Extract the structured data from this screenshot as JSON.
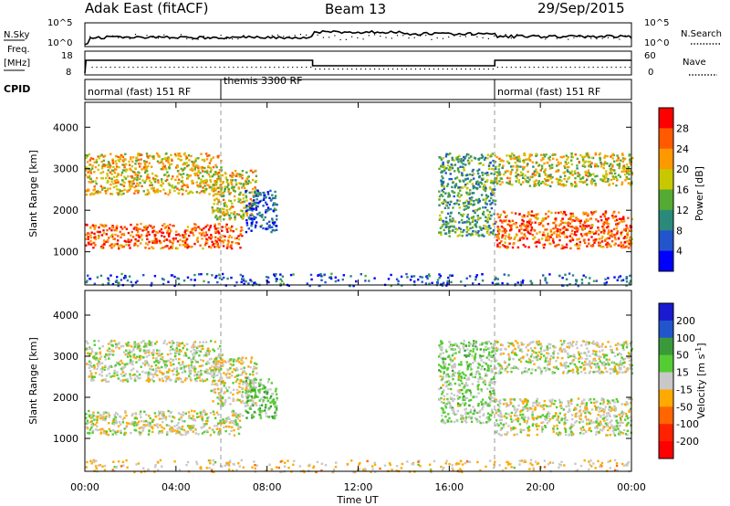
{
  "header": {
    "station": "Adak East (fitACF)",
    "beam": "Beam 13",
    "date": "29/Sep/2015"
  },
  "noise_panel": {
    "left_label": "N.Sky",
    "left_ticks": [
      "10^5",
      "10^0"
    ],
    "right_label": "N.Search",
    "right_ticks": [
      "10^5",
      "10^0"
    ]
  },
  "freq_panel": {
    "left_label_line1": "Freq.",
    "left_label_line2": "[MHz]",
    "left_ticks": [
      "18",
      "8"
    ],
    "right_label": "Nave",
    "right_ticks": [
      "60",
      "0"
    ]
  },
  "cpid_panel": {
    "label": "CPID",
    "segments": [
      {
        "text": "normal (fast) 151 RF",
        "start_hour": 0,
        "end_hour": 6
      },
      {
        "text": "themis 3300 RF",
        "start_hour": 6,
        "end_hour": 18
      },
      {
        "text": "normal (fast) 151 RF",
        "start_hour": 18,
        "end_hour": 24
      }
    ]
  },
  "time_axis": {
    "title": "Time UT",
    "ticks": [
      "00:00",
      "04:00",
      "08:00",
      "12:00",
      "16:00",
      "20:00",
      "00:00"
    ]
  },
  "range_axis": {
    "title": "Slant Range [km]",
    "ticks": [
      "1000",
      "2000",
      "3000",
      "4000"
    ]
  },
  "colors": {
    "power": [
      "#0000ff",
      "#2255cc",
      "#2a8a7a",
      "#55aa33",
      "#c8c800",
      "#ff9900",
      "#ff5a00",
      "#ff0000"
    ],
    "velocity": [
      "#1a1ad0",
      "#2255cc",
      "#3a9a3a",
      "#55cc33",
      "#c8c8c8",
      "#ffaa00",
      "#ff6600",
      "#ff2200",
      "#ff0000"
    ]
  },
  "chart_data": [
    {
      "type": "heatmap",
      "panel": "power",
      "x_axis": "Time UT",
      "xlim": [
        0,
        24
      ],
      "y_axis": "Slant Range [km]",
      "ylim": [
        200,
        4600
      ],
      "colorbar": {
        "title": "Power [dB]",
        "ticks": [
          "4",
          "8",
          "12",
          "16",
          "20",
          "24",
          "28"
        ],
        "range": [
          0,
          32
        ]
      },
      "echo_regions": [
        {
          "t": [
            0.0,
            6.9
          ],
          "range_km": [
            1100,
            1700
          ],
          "value_db": 26
        },
        {
          "t": [
            0.0,
            6.0
          ],
          "range_km": [
            2400,
            3400
          ],
          "value_db": 20
        },
        {
          "t": [
            5.5,
            7.5
          ],
          "range_km": [
            1800,
            3000
          ],
          "value_db": 18
        },
        {
          "t": [
            7.0,
            8.4
          ],
          "range_km": [
            1500,
            2500
          ],
          "value_db": 6
        },
        {
          "t": [
            15.5,
            18.0
          ],
          "range_km": [
            1400,
            3400
          ],
          "value_db": 12
        },
        {
          "t": [
            18.0,
            24.0
          ],
          "range_km": [
            1100,
            2000
          ],
          "value_db": 26
        },
        {
          "t": [
            18.0,
            24.0
          ],
          "range_km": [
            2600,
            3400
          ],
          "value_db": 18
        },
        {
          "t": [
            0.0,
            24.0
          ],
          "range_km": [
            200,
            500
          ],
          "value_db": 6
        }
      ],
      "mode_change_lines_hour": [
        6,
        18
      ]
    },
    {
      "type": "heatmap",
      "panel": "velocity",
      "x_axis": "Time UT",
      "xlim": [
        0,
        24
      ],
      "y_axis": "Slant Range [km]",
      "ylim": [
        200,
        4600
      ],
      "colorbar": {
        "title": "Velocity [m s^-1]",
        "ticks": [
          "200",
          "100",
          "50",
          "15",
          "-15",
          "-50",
          "-100",
          "-200"
        ],
        "range": [
          -250,
          250
        ]
      },
      "echo_regions": [
        {
          "t": [
            0.0,
            6.9
          ],
          "range_km": [
            1100,
            1700
          ],
          "value_ms": 0
        },
        {
          "t": [
            0.0,
            6.0
          ],
          "range_km": [
            2400,
            3400
          ],
          "value_ms": 0
        },
        {
          "t": [
            5.5,
            7.5
          ],
          "range_km": [
            1800,
            3000
          ],
          "value_ms": -10
        },
        {
          "t": [
            7.0,
            8.4
          ],
          "range_km": [
            1500,
            2500
          ],
          "value_ms": 60
        },
        {
          "t": [
            15.5,
            18.0
          ],
          "range_km": [
            1400,
            3400
          ],
          "value_ms": 30
        },
        {
          "t": [
            18.0,
            24.0
          ],
          "range_km": [
            1100,
            2000
          ],
          "value_ms": 0
        },
        {
          "t": [
            18.0,
            24.0
          ],
          "range_km": [
            2600,
            3400
          ],
          "value_ms": 0
        },
        {
          "t": [
            0.0,
            24.0
          ],
          "range_km": [
            200,
            500
          ],
          "value_ms": -30
        }
      ],
      "mode_change_lines_hour": [
        6,
        18
      ]
    }
  ]
}
